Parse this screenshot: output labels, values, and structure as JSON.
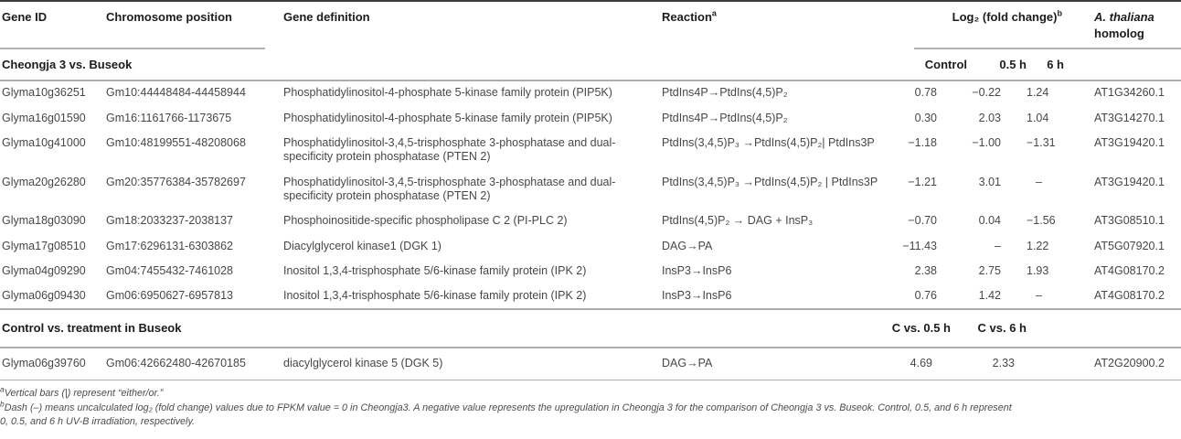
{
  "header": {
    "gene_id": "Gene ID",
    "chromosome": "Chromosome position",
    "definition": "Gene definition",
    "reaction": "Reaction",
    "reaction_sup": "a",
    "log2": "Log₂ (fold change)",
    "log2_sup": "b",
    "homolog_line1": "A. thaliana",
    "homolog_line2": "homolog",
    "sub_control": "Control",
    "sub_h05": "0.5 h",
    "sub_h6": "6 h"
  },
  "section1": {
    "title": "Cheongja 3 vs. Buseok",
    "rows": [
      {
        "gene": "Glyma10g36251",
        "chrom": "Gm10:44448484-44458944",
        "definition": "Phosphatidylinositol-4-phosphate 5-kinase family protein (PIP5K)",
        "reaction": "PtdIns4P→PtdIns(4,5)P₂",
        "control": "0.78",
        "h05": "−0.22",
        "h6": "1.24",
        "homolog": "AT1G34260.1"
      },
      {
        "gene": "Glyma16g01590",
        "chrom": "Gm16:1161766-1173675",
        "definition": "Phosphatidylinositol-4-phosphate 5-kinase family protein (PIP5K)",
        "reaction": "PtdIns4P→PtdIns(4,5)P₂",
        "control": "0.30",
        "h05": "2.03",
        "h6": "1.04",
        "homolog": "AT3G14270.1"
      },
      {
        "gene": "Glyma10g41000",
        "chrom": "Gm10:48199551-48208068",
        "definition": "Phosphatidylinositol-3,4,5-trisphosphate 3-phosphatase and dual-specificity protein phosphatase (PTEN 2)",
        "reaction": "PtdIns(3,4,5)P₃ →PtdIns(4,5)P₂| PtdIns3P",
        "control": "−1.18",
        "h05": "−1.00",
        "h6": "−1.31",
        "homolog": "AT3G19420.1"
      },
      {
        "gene": "Glyma20g26280",
        "chrom": "Gm20:35776384-35782697",
        "definition": "Phosphatidylinositol-3,4,5-trisphosphate 3-phosphatase and dual-specificity protein phosphatase (PTEN 2)",
        "reaction": "PtdIns(3,4,5)P₃ →PtdIns(4,5)P₂ | PtdIns3P",
        "control": "−1.21",
        "h05": "3.01",
        "h6": "–",
        "homolog": "AT3G19420.1"
      },
      {
        "gene": "Glyma18g03090",
        "chrom": "Gm18:2033237-2038137",
        "definition": "Phosphoinositide-specific phospholipase C 2 (PI-PLC 2)",
        "reaction": "PtdIns(4,5)P₂ → DAG + InsP₃",
        "control": "−0.70",
        "h05": "0.04",
        "h6": "−1.56",
        "homolog": "AT3G08510.1"
      },
      {
        "gene": "Glyma17g08510",
        "chrom": "Gm17:6296131-6303862",
        "definition": "Diacylglycerol kinase1 (DGK 1)",
        "reaction": "DAG→PA",
        "control": "−11.43",
        "h05": "–",
        "h6": "1.22",
        "homolog": "AT5G07920.1"
      },
      {
        "gene": "Glyma04g09290",
        "chrom": "Gm04:7455432-7461028",
        "definition": "Inositol 1,3,4-trisphosphate 5/6-kinase family protein (IPK 2)",
        "reaction": "InsP3→InsP6",
        "control": "2.38",
        "h05": "2.75",
        "h6": "1.93",
        "homolog": "AT4G08170.2"
      },
      {
        "gene": "Glyma06g09430",
        "chrom": "Gm06:6950627-6957813",
        "definition": "Inositol 1,3,4-trisphosphate 5/6-kinase family protein (IPK 2)",
        "reaction": "InsP3→InsP6",
        "control": "0.76",
        "h05": "1.42",
        "h6": "–",
        "homolog": "AT4G08170.2"
      }
    ]
  },
  "section2": {
    "title": "Control vs. treatment in Buseok",
    "sub_c05": "C vs. 0.5 h",
    "sub_c6": "C vs. 6 h",
    "rows": [
      {
        "gene": "Glyma06g39760",
        "chrom": "Gm06:42662480-42670185",
        "definition": "diacylglycerol kinase 5 (DGK 5)",
        "reaction": "DAG→PA",
        "c05": "4.69",
        "c6": "2.33",
        "homolog": "AT2G20900.2"
      }
    ]
  },
  "footnotes": {
    "a_marker": "a",
    "a_text": "Vertical bars (|) represent “either/or.”",
    "b_marker": "b",
    "b_line1": "Dash (–) means uncalculated log₂ (fold change) values due to FPKM value = 0 in Cheongja3. A negative value represents the upregulation in Cheongja 3 for the comparison of Cheongja 3 vs. Buseok. Control, 0.5, and 6 h represent",
    "b_line2": "0, 0.5, and 6 h UV-B irradiation, respectively."
  }
}
